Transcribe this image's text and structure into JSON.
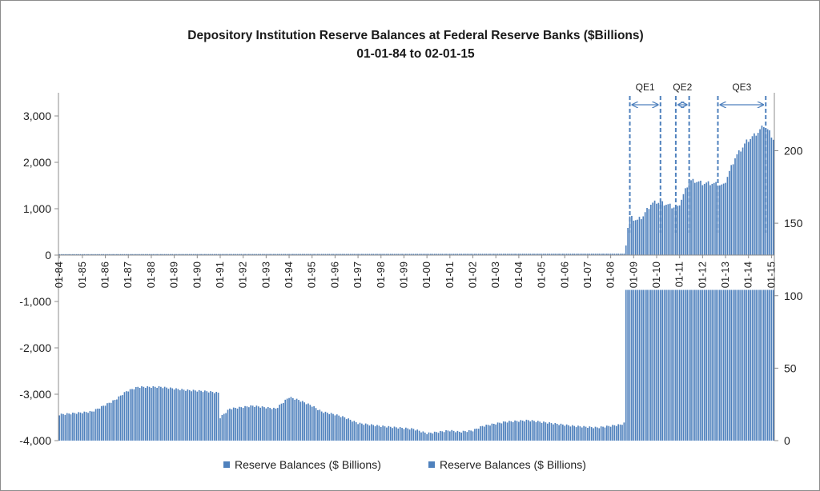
{
  "chart_data": {
    "type": "bar",
    "title": "Depository Institution Reserve Balances at Federal Reserve Banks ($Billions)",
    "subtitle": "01-01-84 to 02-01-15",
    "colors": {
      "series1": "#4f81bd",
      "series2": "#4f81bd",
      "qe_marker": "#4f81bd"
    },
    "grid": false,
    "legend_position": "bottom",
    "x_tick_labels": [
      "01-84",
      "01-85",
      "01-86",
      "01-87",
      "01-88",
      "01-89",
      "01-90",
      "01-91",
      "01-92",
      "01-93",
      "01-94",
      "01-95",
      "01-96",
      "01-97",
      "01-98",
      "01-99",
      "01-00",
      "01-01",
      "01-02",
      "01-03",
      "01-04",
      "01-05",
      "01-06",
      "01-07",
      "01-08",
      "01-09",
      "01-10",
      "01-11",
      "01-12",
      "01-13",
      "01-14",
      "01-15"
    ],
    "y_left": {
      "ylim": [
        -4000,
        3500
      ],
      "ticks": [
        -4000,
        -3000,
        -2000,
        -1000,
        0,
        1000,
        2000,
        3000
      ],
      "tick_labels": [
        "-4,000",
        "-3,000",
        "-2,000",
        "-1,000",
        "0",
        "1,000",
        "2,000",
        "3,000"
      ]
    },
    "y_right": {
      "ylim": [
        0,
        240
      ],
      "ticks": [
        0,
        50,
        100,
        150,
        200
      ],
      "tick_labels": [
        "0",
        "50",
        "100",
        "150",
        "200"
      ]
    },
    "series": [
      {
        "name": "Reserve Balances ($ Billions)",
        "axis": "left",
        "x_start": "1984-01",
        "frequency": "monthly",
        "anchors": [
          [
            "1984-01",
            20
          ],
          [
            "2008-08",
            30
          ],
          [
            "2008-09",
            250
          ],
          [
            "2008-10",
            600
          ],
          [
            "2008-11",
            820
          ],
          [
            "2009-03",
            750
          ],
          [
            "2009-06",
            850
          ],
          [
            "2009-10",
            1100
          ],
          [
            "2010-01",
            1150
          ],
          [
            "2010-06",
            1100
          ],
          [
            "2010-09",
            1050
          ],
          [
            "2010-12",
            1020
          ],
          [
            "2011-03",
            1300
          ],
          [
            "2011-06",
            1600
          ],
          [
            "2011-09",
            1600
          ],
          [
            "2012-01",
            1550
          ],
          [
            "2012-06",
            1550
          ],
          [
            "2012-12",
            1500
          ],
          [
            "2013-03",
            1800
          ],
          [
            "2013-06",
            2100
          ],
          [
            "2013-12",
            2450
          ],
          [
            "2014-06",
            2650
          ],
          [
            "2014-09",
            2800
          ],
          [
            "2014-12",
            2650
          ],
          [
            "2015-02",
            2500
          ]
        ]
      },
      {
        "name": "Reserve Balances ($ Billions)",
        "axis": "right",
        "x_start": "1984-01",
        "frequency": "monthly",
        "anchors": [
          [
            "1984-01",
            18
          ],
          [
            "1985-06",
            20
          ],
          [
            "1986-06",
            28
          ],
          [
            "1986-12",
            34
          ],
          [
            "1987-06",
            37
          ],
          [
            "1988-06",
            37
          ],
          [
            "1989-06",
            35
          ],
          [
            "1990-06",
            34
          ],
          [
            "1990-12",
            33
          ],
          [
            "1991-01",
            16
          ],
          [
            "1991-06",
            22
          ],
          [
            "1992-06",
            24
          ],
          [
            "1993-06",
            22
          ],
          [
            "1994-01",
            30
          ],
          [
            "1994-06",
            28
          ],
          [
            "1995-01",
            24
          ],
          [
            "1995-06",
            20
          ],
          [
            "1996-01",
            18
          ],
          [
            "1996-06",
            16
          ],
          [
            "1997-01",
            12
          ],
          [
            "1998-01",
            10
          ],
          [
            "1999-06",
            8
          ],
          [
            "2000-01",
            5
          ],
          [
            "2001-01",
            7
          ],
          [
            "2001-06",
            6
          ],
          [
            "2002-01",
            7
          ],
          [
            "2002-06",
            10
          ],
          [
            "2003-06",
            13
          ],
          [
            "2004-06",
            14
          ],
          [
            "2005-06",
            12
          ],
          [
            "2006-06",
            10
          ],
          [
            "2007-06",
            9
          ],
          [
            "2008-06",
            11
          ],
          [
            "2008-08",
            12
          ],
          [
            "2008-09",
            104
          ],
          [
            "2015-02",
            104
          ]
        ]
      }
    ],
    "annotations": [
      {
        "label": "QE1",
        "start": "2008-11",
        "end": "2010-03"
      },
      {
        "label": "QE2",
        "start": "2010-11",
        "end": "2011-06"
      },
      {
        "label": "QE3",
        "start": "2012-09",
        "end": "2014-10"
      }
    ]
  }
}
